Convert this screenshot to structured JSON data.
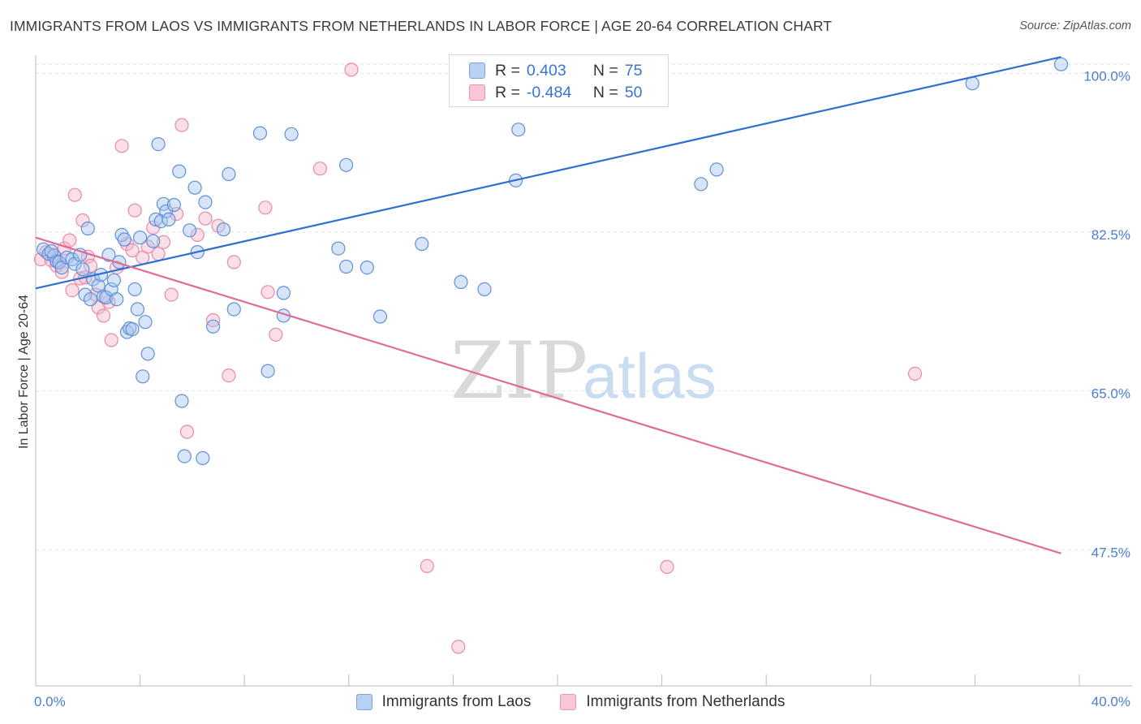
{
  "title": "IMMIGRANTS FROM LAOS VS IMMIGRANTS FROM NETHERLANDS IN LABOR FORCE | AGE 20-64 CORRELATION CHART",
  "source": "Source: ZipAtlas.com",
  "watermark": {
    "zip": "ZIP",
    "atlas": "atlas"
  },
  "colors": {
    "blue_fill": "#a9c6f0",
    "blue_stroke": "#5f90d8",
    "blue_line": "#2f6fd0",
    "pink_fill": "#f5b8cc",
    "pink_stroke": "#e889a8",
    "pink_line": "#e06c96",
    "grid": "#e3e3e3",
    "tick_label": "#4a7fd0"
  },
  "legend": {
    "r_label": "R =",
    "n_label": "N =",
    "series": [
      {
        "r": "0.403",
        "n": "75"
      },
      {
        "r": "-0.484",
        "n": "50"
      }
    ]
  },
  "chart_data": {
    "type": "scatter",
    "xlabel": "",
    "ylabel": "In Labor Force | Age 20-64",
    "xlim": [
      0,
      40
    ],
    "ylim": [
      32.5,
      102
    ],
    "x_tick_labels": [
      "0.0%",
      "40.0%"
    ],
    "y_ticks": [
      47.5,
      65.0,
      82.5,
      100.0
    ],
    "y_tick_labels": [
      "47.5%",
      "65.0%",
      "82.5%",
      "100.0%"
    ],
    "grid": true,
    "legend_position": "bottom",
    "series": [
      {
        "name": "Immigrants from Laos",
        "color": "blue",
        "trendline": {
          "x": [
            0,
            39.3
          ],
          "y": [
            76.3,
            101.8
          ]
        },
        "points": [
          [
            0.3,
            80.6
          ],
          [
            0.5,
            80.1
          ],
          [
            0.7,
            79.9
          ],
          [
            0.8,
            79.3
          ],
          [
            0.6,
            80.4
          ],
          [
            0.9,
            79.2
          ],
          [
            1.0,
            78.6
          ],
          [
            1.2,
            79.7
          ],
          [
            1.4,
            79.5
          ],
          [
            1.5,
            79.0
          ],
          [
            1.7,
            80.0
          ],
          [
            1.8,
            78.4
          ],
          [
            1.9,
            75.6
          ],
          [
            2.0,
            82.9
          ],
          [
            2.1,
            75.1
          ],
          [
            2.2,
            77.3
          ],
          [
            2.4,
            76.6
          ],
          [
            2.5,
            77.8
          ],
          [
            2.6,
            75.4
          ],
          [
            2.7,
            75.3
          ],
          [
            2.8,
            80.0
          ],
          [
            2.9,
            76.2
          ],
          [
            3.0,
            77.2
          ],
          [
            3.1,
            75.1
          ],
          [
            3.2,
            79.2
          ],
          [
            3.3,
            82.2
          ],
          [
            3.4,
            81.7
          ],
          [
            3.5,
            71.5
          ],
          [
            3.6,
            71.9
          ],
          [
            3.7,
            71.8
          ],
          [
            3.8,
            76.2
          ],
          [
            3.9,
            74.0
          ],
          [
            4.0,
            81.9
          ],
          [
            4.1,
            66.6
          ],
          [
            4.2,
            72.6
          ],
          [
            4.3,
            69.1
          ],
          [
            4.5,
            81.5
          ],
          [
            4.6,
            83.9
          ],
          [
            4.7,
            92.2
          ],
          [
            4.8,
            83.7
          ],
          [
            4.9,
            85.6
          ],
          [
            5.0,
            84.8
          ],
          [
            5.1,
            83.9
          ],
          [
            5.3,
            85.5
          ],
          [
            5.5,
            89.2
          ],
          [
            5.6,
            63.9
          ],
          [
            5.7,
            57.8
          ],
          [
            5.9,
            82.7
          ],
          [
            6.1,
            87.4
          ],
          [
            6.2,
            80.3
          ],
          [
            6.4,
            57.6
          ],
          [
            6.5,
            85.8
          ],
          [
            6.8,
            72.1
          ],
          [
            7.2,
            82.8
          ],
          [
            7.4,
            88.9
          ],
          [
            7.6,
            74.0
          ],
          [
            8.6,
            93.4
          ],
          [
            8.9,
            67.2
          ],
          [
            9.5,
            75.8
          ],
          [
            9.8,
            93.3
          ],
          [
            9.5,
            73.3
          ],
          [
            11.6,
            80.7
          ],
          [
            11.9,
            89.9
          ],
          [
            11.9,
            78.7
          ],
          [
            12.7,
            78.6
          ],
          [
            13.2,
            73.2
          ],
          [
            14.8,
            81.2
          ],
          [
            16.3,
            77.0
          ],
          [
            17.2,
            76.2
          ],
          [
            18.5,
            93.8
          ],
          [
            18.4,
            88.2
          ],
          [
            25.5,
            87.8
          ],
          [
            26.1,
            89.4
          ],
          [
            35.9,
            98.9
          ],
          [
            39.3,
            101.0
          ]
        ]
      },
      {
        "name": "Immigrants from Netherlands",
        "color": "pink",
        "trendline": {
          "x": [
            0,
            39.3
          ],
          "y": [
            81.9,
            47.1
          ]
        },
        "points": [
          [
            0.2,
            79.5
          ],
          [
            0.4,
            80.3
          ],
          [
            0.6,
            79.4
          ],
          [
            0.7,
            80.0
          ],
          [
            0.8,
            78.8
          ],
          [
            0.9,
            79.1
          ],
          [
            1.0,
            78.1
          ],
          [
            1.1,
            80.7
          ],
          [
            1.3,
            81.6
          ],
          [
            1.4,
            76.1
          ],
          [
            1.5,
            86.6
          ],
          [
            1.7,
            77.4
          ],
          [
            1.8,
            83.8
          ],
          [
            1.9,
            77.5
          ],
          [
            2.0,
            79.8
          ],
          [
            2.1,
            78.8
          ],
          [
            2.3,
            75.6
          ],
          [
            2.4,
            74.2
          ],
          [
            2.6,
            73.3
          ],
          [
            2.8,
            74.8
          ],
          [
            2.9,
            70.6
          ],
          [
            3.1,
            78.6
          ],
          [
            3.3,
            92.0
          ],
          [
            3.5,
            81.2
          ],
          [
            3.7,
            80.5
          ],
          [
            3.8,
            84.9
          ],
          [
            4.1,
            79.7
          ],
          [
            4.3,
            80.9
          ],
          [
            4.5,
            83.0
          ],
          [
            4.7,
            80.1
          ],
          [
            4.9,
            81.4
          ],
          [
            5.2,
            75.6
          ],
          [
            5.4,
            84.5
          ],
          [
            5.6,
            94.3
          ],
          [
            5.8,
            60.5
          ],
          [
            6.2,
            82.2
          ],
          [
            6.5,
            84.0
          ],
          [
            6.8,
            72.8
          ],
          [
            7.0,
            83.2
          ],
          [
            7.4,
            66.7
          ],
          [
            7.6,
            79.2
          ],
          [
            8.8,
            85.2
          ],
          [
            8.9,
            75.9
          ],
          [
            9.2,
            71.2
          ],
          [
            10.9,
            89.5
          ],
          [
            12.1,
            100.4
          ],
          [
            15.0,
            45.7
          ],
          [
            16.2,
            36.8
          ],
          [
            24.2,
            45.6
          ],
          [
            33.7,
            66.9
          ]
        ]
      }
    ]
  }
}
